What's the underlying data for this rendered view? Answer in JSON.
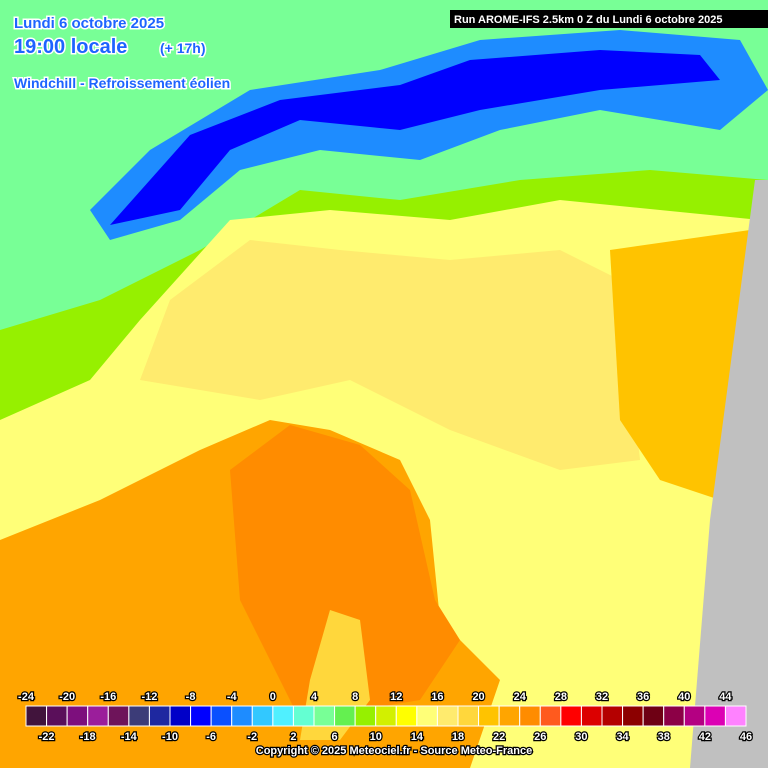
{
  "header": {
    "date": "Lundi 6 octobre 2025",
    "time": "19:00 locale",
    "offset": "(+ 17h)",
    "parameter": "Windchill - Refroissement éolien",
    "run": "Run AROME-IFS 2.5km 0 Z du Lundi 6 octobre 2025"
  },
  "legend": {
    "labels": [
      -24,
      -22,
      -20,
      -18,
      -16,
      -14,
      -12,
      -10,
      -8,
      -6,
      -4,
      -2,
      0,
      2,
      4,
      6,
      8,
      10,
      12,
      14,
      16,
      18,
      20,
      22,
      24,
      26,
      28,
      30,
      32,
      34,
      36,
      38,
      40,
      42,
      44,
      46
    ],
    "colors": [
      "#41143c",
      "#5a0f5a",
      "#7d0f7d",
      "#9b1e9b",
      "#6e145a",
      "#3c3c78",
      "#1e28a0",
      "#0000c8",
      "#0000ff",
      "#0a50ff",
      "#1e8cff",
      "#32c8ff",
      "#50f0ff",
      "#64ffd2",
      "#78ff96",
      "#64f050",
      "#96f000",
      "#d2f000",
      "#ffff00",
      "#ffff78",
      "#ffeb6e",
      "#ffd73c",
      "#ffc300",
      "#ffa500",
      "#ff8c00",
      "#ff5a1e",
      "#ff0000",
      "#dc0000",
      "#b40000",
      "#8c0000",
      "#6e0014",
      "#8c0046",
      "#b40082",
      "#dc00b4",
      "#ff82ff"
    ]
  },
  "footer": {
    "copyright": "Copyright © 2025 Meteociel.fr - Source Meteo-France"
  }
}
